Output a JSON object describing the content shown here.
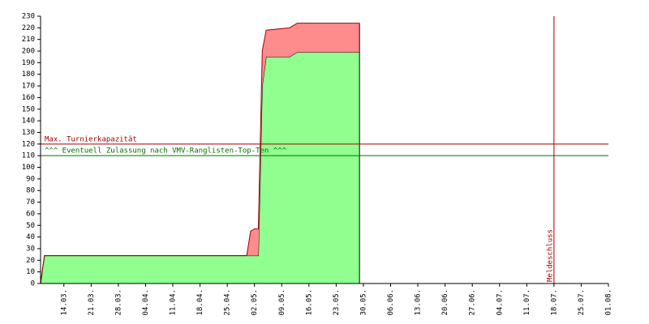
{
  "chart_data": {
    "type": "stacked-area",
    "x": [
      "08.03.",
      "09.03.",
      "30.04.",
      "01.05.",
      "02.05.",
      "03.05.",
      "04.05.",
      "05.05.",
      "11.05.",
      "13.05.",
      "29.05."
    ],
    "series": [
      {
        "color": "#90ff90",
        "values": [
          0,
          24,
          24,
          24,
          24,
          24,
          170,
          195,
          195,
          199,
          199
        ]
      },
      {
        "color": "#ff8c8c",
        "values": [
          0,
          0,
          0,
          21,
          23,
          23,
          30,
          23,
          25,
          25,
          25
        ]
      }
    ],
    "xlim": [
      "08.03.",
      "01.08."
    ],
    "xticks": [
      "14.03.",
      "21.03.",
      "28.03.",
      "04.04.",
      "11.04.",
      "18.04.",
      "25.04.",
      "02.05.",
      "09.05.",
      "16.05.",
      "23.05.",
      "30.05.",
      "06.06.",
      "13.06.",
      "20.06.",
      "27.06.",
      "04.07.",
      "11.07.",
      "18.07.",
      "25.07.",
      "01.08."
    ],
    "ylim": [
      0,
      230
    ],
    "yticks": [
      0,
      10,
      20,
      30,
      40,
      50,
      60,
      70,
      80,
      90,
      100,
      110,
      120,
      130,
      140,
      150,
      160,
      170,
      180,
      190,
      200,
      210,
      220,
      230
    ],
    "hlines": [
      {
        "value": 120,
        "label": "Max. Turnierkapazität",
        "color": "#a00000"
      },
      {
        "value": 110,
        "label": "^^^ Eventuell Zulassung nach VMV-Ranglisten-Top-Ten ^^^",
        "color": "#007000"
      }
    ],
    "vlines": [
      {
        "x": "18.07.",
        "label": "Meldeschluss",
        "color": "#a00000"
      }
    ]
  }
}
